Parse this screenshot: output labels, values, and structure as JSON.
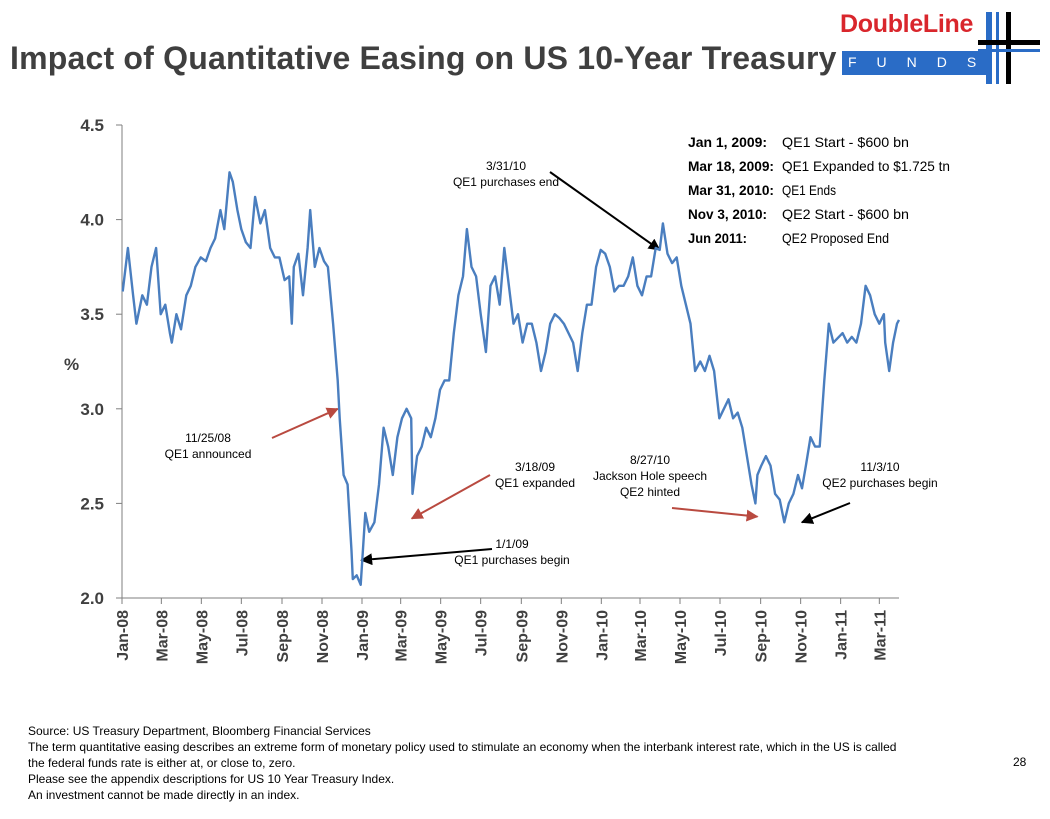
{
  "header": {
    "title": "Impact of Quantitative Easing on US 10-Year Treasury",
    "logo_word": "DoubleLine",
    "logo_sub": "FUNDS",
    "brand_red": "#d9262c",
    "brand_blue": "#2a6cc6"
  },
  "chart_data": {
    "type": "line",
    "ylabel": "%",
    "xlabel": "",
    "ylim": [
      2.0,
      4.5
    ],
    "yticks": [
      "2.0",
      "2.5",
      "3.0",
      "3.5",
      "4.0",
      "4.5"
    ],
    "xlim": [
      "2008-01-01",
      "2011-03-31"
    ],
    "xtick_labels": [
      "Jan-08",
      "Mar-08",
      "May-08",
      "Jul-08",
      "Sep-08",
      "Nov-08",
      "Jan-09",
      "Mar-09",
      "May-09",
      "Jul-09",
      "Sep-09",
      "Nov-09",
      "Jan-10",
      "Mar-10",
      "May-10",
      "Jul-10",
      "Sep-10",
      "Nov-10",
      "Jan-11",
      "Mar-11"
    ],
    "line_color": "#4a7ebf",
    "grid": false,
    "series": [
      {
        "name": "",
        "points": [
          [
            "2008-01-02",
            3.62
          ],
          [
            "2008-01-10",
            3.85
          ],
          [
            "2008-01-18",
            3.6
          ],
          [
            "2008-01-23",
            3.45
          ],
          [
            "2008-02-01",
            3.6
          ],
          [
            "2008-02-08",
            3.55
          ],
          [
            "2008-02-15",
            3.75
          ],
          [
            "2008-02-22",
            3.85
          ],
          [
            "2008-02-29",
            3.5
          ],
          [
            "2008-03-07",
            3.55
          ],
          [
            "2008-03-14",
            3.4
          ],
          [
            "2008-03-17",
            3.35
          ],
          [
            "2008-03-24",
            3.5
          ],
          [
            "2008-03-31",
            3.42
          ],
          [
            "2008-04-08",
            3.6
          ],
          [
            "2008-04-15",
            3.65
          ],
          [
            "2008-04-22",
            3.75
          ],
          [
            "2008-04-30",
            3.8
          ],
          [
            "2008-05-08",
            3.78
          ],
          [
            "2008-05-15",
            3.85
          ],
          [
            "2008-05-22",
            3.9
          ],
          [
            "2008-05-30",
            4.05
          ],
          [
            "2008-06-05",
            3.95
          ],
          [
            "2008-06-13",
            4.25
          ],
          [
            "2008-06-18",
            4.2
          ],
          [
            "2008-06-25",
            4.05
          ],
          [
            "2008-07-01",
            3.95
          ],
          [
            "2008-07-08",
            3.88
          ],
          [
            "2008-07-15",
            3.85
          ],
          [
            "2008-07-22",
            4.12
          ],
          [
            "2008-07-30",
            3.98
          ],
          [
            "2008-08-06",
            4.05
          ],
          [
            "2008-08-14",
            3.85
          ],
          [
            "2008-08-21",
            3.8
          ],
          [
            "2008-08-28",
            3.8
          ],
          [
            "2008-09-05",
            3.68
          ],
          [
            "2008-09-12",
            3.7
          ],
          [
            "2008-09-16",
            3.45
          ],
          [
            "2008-09-19",
            3.75
          ],
          [
            "2008-09-26",
            3.82
          ],
          [
            "2008-10-03",
            3.6
          ],
          [
            "2008-10-10",
            3.85
          ],
          [
            "2008-10-14",
            4.05
          ],
          [
            "2008-10-21",
            3.75
          ],
          [
            "2008-10-28",
            3.85
          ],
          [
            "2008-11-04",
            3.78
          ],
          [
            "2008-11-10",
            3.75
          ],
          [
            "2008-11-18",
            3.45
          ],
          [
            "2008-11-25",
            3.15
          ],
          [
            "2008-11-28",
            2.95
          ],
          [
            "2008-12-04",
            2.65
          ],
          [
            "2008-12-10",
            2.6
          ],
          [
            "2008-12-16",
            2.25
          ],
          [
            "2008-12-18",
            2.1
          ],
          [
            "2008-12-24",
            2.12
          ],
          [
            "2008-12-30",
            2.07
          ],
          [
            "2009-01-06",
            2.45
          ],
          [
            "2009-01-12",
            2.35
          ],
          [
            "2009-01-20",
            2.4
          ],
          [
            "2009-01-27",
            2.6
          ],
          [
            "2009-02-03",
            2.9
          ],
          [
            "2009-02-10",
            2.8
          ],
          [
            "2009-02-17",
            2.65
          ],
          [
            "2009-02-24",
            2.85
          ],
          [
            "2009-03-03",
            2.95
          ],
          [
            "2009-03-10",
            3.0
          ],
          [
            "2009-03-17",
            2.95
          ],
          [
            "2009-03-19",
            2.55
          ],
          [
            "2009-03-26",
            2.75
          ],
          [
            "2009-04-02",
            2.8
          ],
          [
            "2009-04-09",
            2.9
          ],
          [
            "2009-04-16",
            2.85
          ],
          [
            "2009-04-23",
            2.95
          ],
          [
            "2009-04-30",
            3.1
          ],
          [
            "2009-05-07",
            3.15
          ],
          [
            "2009-05-14",
            3.15
          ],
          [
            "2009-05-21",
            3.4
          ],
          [
            "2009-05-28",
            3.6
          ],
          [
            "2009-06-04",
            3.7
          ],
          [
            "2009-06-10",
            3.95
          ],
          [
            "2009-06-17",
            3.75
          ],
          [
            "2009-06-24",
            3.7
          ],
          [
            "2009-07-01",
            3.5
          ],
          [
            "2009-07-09",
            3.3
          ],
          [
            "2009-07-16",
            3.65
          ],
          [
            "2009-07-23",
            3.7
          ],
          [
            "2009-07-30",
            3.55
          ],
          [
            "2009-08-06",
            3.85
          ],
          [
            "2009-08-13",
            3.65
          ],
          [
            "2009-08-20",
            3.45
          ],
          [
            "2009-08-27",
            3.5
          ],
          [
            "2009-09-03",
            3.35
          ],
          [
            "2009-09-10",
            3.45
          ],
          [
            "2009-09-17",
            3.45
          ],
          [
            "2009-09-24",
            3.35
          ],
          [
            "2009-10-01",
            3.2
          ],
          [
            "2009-10-08",
            3.3
          ],
          [
            "2009-10-15",
            3.45
          ],
          [
            "2009-10-22",
            3.5
          ],
          [
            "2009-10-29",
            3.48
          ],
          [
            "2009-11-05",
            3.45
          ],
          [
            "2009-11-12",
            3.4
          ],
          [
            "2009-11-19",
            3.35
          ],
          [
            "2009-11-26",
            3.2
          ],
          [
            "2009-12-03",
            3.4
          ],
          [
            "2009-12-10",
            3.55
          ],
          [
            "2009-12-17",
            3.55
          ],
          [
            "2009-12-24",
            3.75
          ],
          [
            "2009-12-31",
            3.84
          ],
          [
            "2010-01-07",
            3.82
          ],
          [
            "2010-01-14",
            3.75
          ],
          [
            "2010-01-21",
            3.62
          ],
          [
            "2010-01-28",
            3.65
          ],
          [
            "2010-02-04",
            3.65
          ],
          [
            "2010-02-11",
            3.7
          ],
          [
            "2010-02-18",
            3.8
          ],
          [
            "2010-02-25",
            3.65
          ],
          [
            "2010-03-04",
            3.6
          ],
          [
            "2010-03-11",
            3.7
          ],
          [
            "2010-03-18",
            3.7
          ],
          [
            "2010-03-25",
            3.85
          ],
          [
            "2010-03-31",
            3.84
          ],
          [
            "2010-04-05",
            3.98
          ],
          [
            "2010-04-12",
            3.82
          ],
          [
            "2010-04-19",
            3.77
          ],
          [
            "2010-04-26",
            3.8
          ],
          [
            "2010-05-03",
            3.65
          ],
          [
            "2010-05-10",
            3.55
          ],
          [
            "2010-05-17",
            3.45
          ],
          [
            "2010-05-24",
            3.2
          ],
          [
            "2010-06-01",
            3.25
          ],
          [
            "2010-06-08",
            3.2
          ],
          [
            "2010-06-15",
            3.28
          ],
          [
            "2010-06-22",
            3.2
          ],
          [
            "2010-06-30",
            2.95
          ],
          [
            "2010-07-07",
            3.0
          ],
          [
            "2010-07-14",
            3.05
          ],
          [
            "2010-07-21",
            2.95
          ],
          [
            "2010-07-28",
            2.98
          ],
          [
            "2010-08-04",
            2.9
          ],
          [
            "2010-08-11",
            2.75
          ],
          [
            "2010-08-18",
            2.6
          ],
          [
            "2010-08-24",
            2.5
          ],
          [
            "2010-08-27",
            2.65
          ],
          [
            "2010-09-02",
            2.7
          ],
          [
            "2010-09-09",
            2.75
          ],
          [
            "2010-09-16",
            2.7
          ],
          [
            "2010-09-23",
            2.55
          ],
          [
            "2010-09-30",
            2.52
          ],
          [
            "2010-10-07",
            2.4
          ],
          [
            "2010-10-14",
            2.5
          ],
          [
            "2010-10-21",
            2.55
          ],
          [
            "2010-10-28",
            2.65
          ],
          [
            "2010-11-03",
            2.58
          ],
          [
            "2010-11-09",
            2.7
          ],
          [
            "2010-11-16",
            2.85
          ],
          [
            "2010-11-23",
            2.8
          ],
          [
            "2010-11-30",
            2.8
          ],
          [
            "2010-12-07",
            3.15
          ],
          [
            "2010-12-14",
            3.45
          ],
          [
            "2010-12-21",
            3.35
          ],
          [
            "2011-01-04",
            3.4
          ],
          [
            "2011-01-11",
            3.35
          ],
          [
            "2011-01-18",
            3.38
          ],
          [
            "2011-01-25",
            3.35
          ],
          [
            "2011-02-01",
            3.45
          ],
          [
            "2011-02-08",
            3.65
          ],
          [
            "2011-02-15",
            3.6
          ],
          [
            "2011-02-22",
            3.5
          ],
          [
            "2011-03-01",
            3.45
          ],
          [
            "2011-03-08",
            3.5
          ],
          [
            "2011-03-10",
            3.35
          ],
          [
            "2011-03-16",
            3.2
          ],
          [
            "2011-03-22",
            3.35
          ],
          [
            "2011-03-28",
            3.45
          ],
          [
            "2011-03-31",
            3.47
          ]
        ]
      }
    ],
    "annotations": [
      {
        "lines": [
          "11/25/08",
          "QE1 announced"
        ],
        "target": [
          "2008-11-25",
          3.0
        ],
        "color": "#b94a40"
      },
      {
        "lines": [
          "1/1/09",
          "QE1 purchases begin"
        ],
        "target": [
          "2008-12-31",
          2.2
        ],
        "color": "#000000"
      },
      {
        "lines": [
          "3/18/09",
          "QE1 expanded"
        ],
        "target": [
          "2009-03-18",
          2.42
        ],
        "color": "#b94a40"
      },
      {
        "lines": [
          "3/31/10",
          "QE1 purchases end"
        ],
        "target": [
          "2010-03-31",
          3.84
        ],
        "color": "#000000"
      },
      {
        "lines": [
          "8/27/10",
          "Jackson Hole speech",
          "QE2 hinted"
        ],
        "target": [
          "2010-08-27",
          2.43
        ],
        "color": "#b94a40"
      },
      {
        "lines": [
          "11/3/10",
          "QE2 purchases begin"
        ],
        "target": [
          "2010-11-03",
          2.4
        ],
        "color": "#000000"
      }
    ],
    "legend_box": [
      {
        "date": "Jan 1, 2009:",
        "event": "QE1 Start - $600 bn"
      },
      {
        "date": "Mar 18, 2009:",
        "event": "QE1 Expanded to $1.725 tn"
      },
      {
        "date": "Mar 31, 2010:",
        "event": "QE1 Ends"
      },
      {
        "date": "Nov 3, 2010:",
        "event": "QE2 Start - $600 bn"
      },
      {
        "date": "Jun 2011:",
        "event": "QE2 Proposed End"
      }
    ]
  },
  "footer": {
    "lines": [
      "Source: US Treasury Department, Bloomberg Financial Services",
      "The term quantitative easing describes an extreme form of monetary policy used to stimulate an economy when the interbank interest rate, which in the US is called",
      "the federal funds rate is either at, or close to, zero.",
      "Please see the appendix descriptions for US 10 Year Treasury Index.",
      "An investment cannot be made directly in an index."
    ],
    "page_number": "28"
  }
}
